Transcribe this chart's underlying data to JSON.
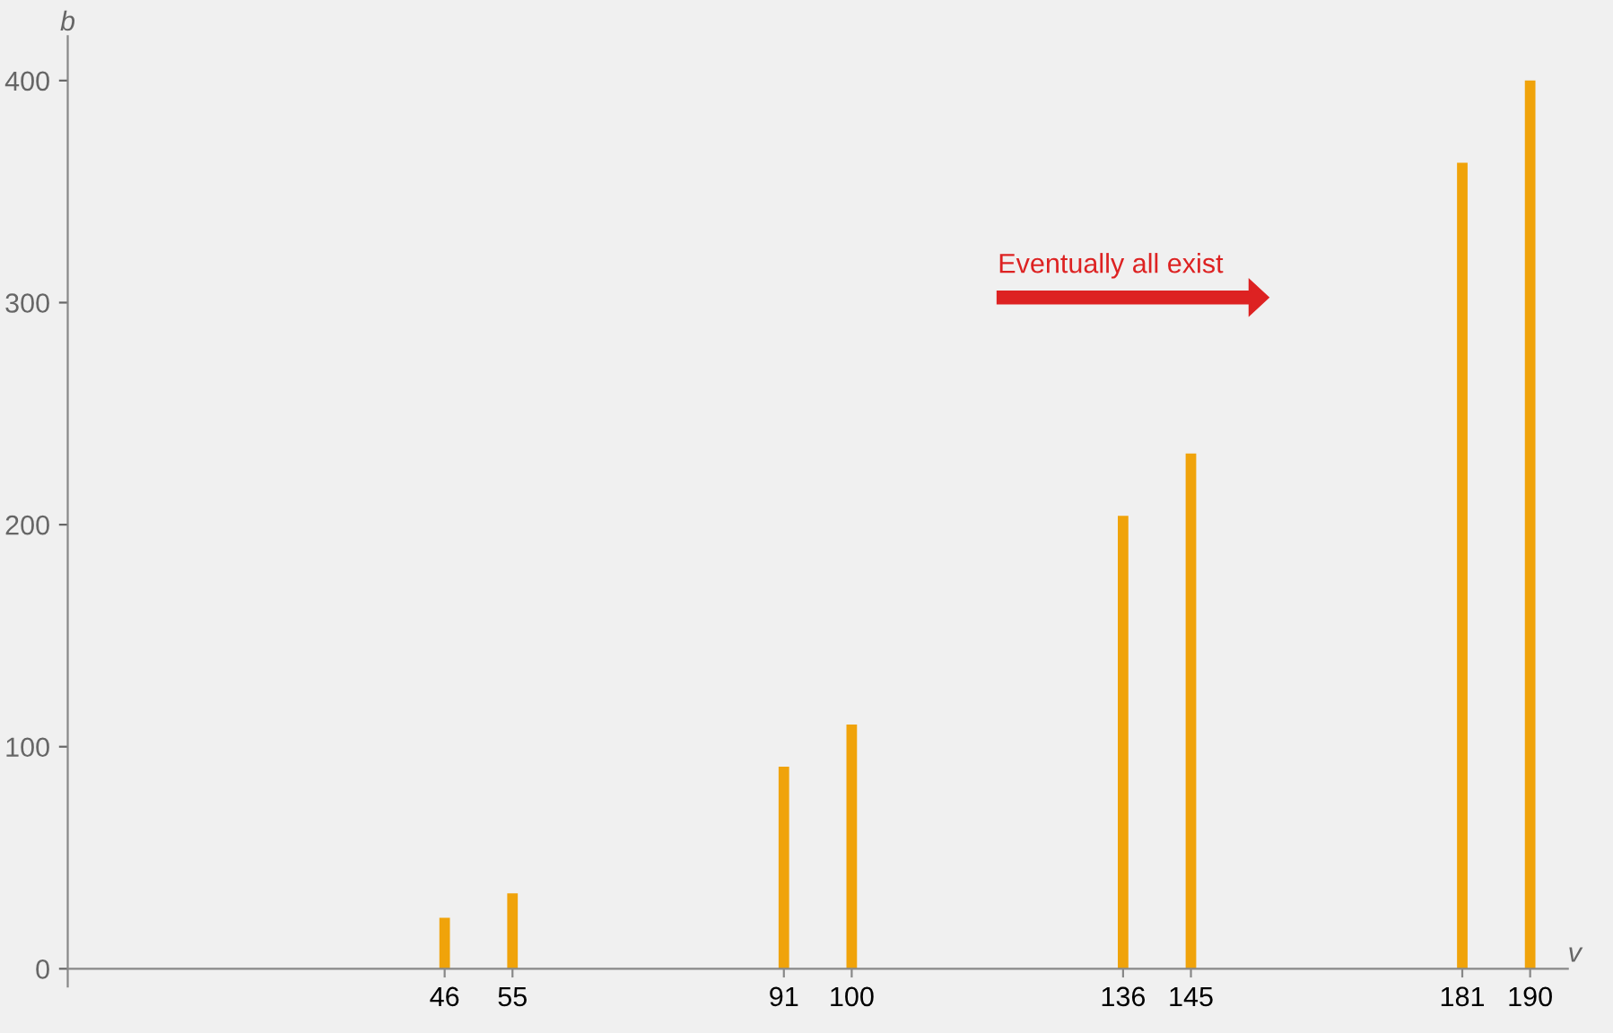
{
  "chart_data": {
    "type": "bar",
    "xlabel": "v",
    "ylabel": "b",
    "x": [
      46,
      55,
      91,
      100,
      136,
      145,
      181,
      190
    ],
    "values": [
      23,
      34,
      91,
      110,
      204,
      232,
      363,
      400
    ],
    "color": "#f0a30a",
    "xlim": [
      -4,
      195
    ],
    "ylim": [
      -8,
      420
    ],
    "xticks": [
      46,
      55,
      91,
      100,
      136,
      145,
      181,
      190
    ],
    "yticks": [
      0,
      100,
      200,
      300,
      400
    ],
    "grid": false,
    "annotations": [
      "Eventually all exist"
    ]
  }
}
